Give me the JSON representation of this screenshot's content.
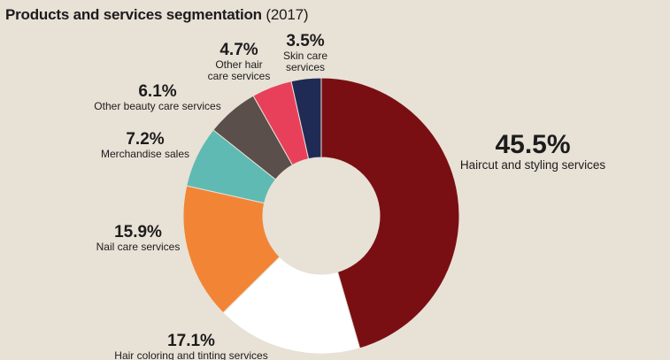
{
  "title": "Products and services segmentation",
  "title_year": "(2017)",
  "chart_data": {
    "type": "pie",
    "donut": true,
    "title": "Products and services segmentation (2017)",
    "slices": [
      {
        "label": "Haircut and styling services",
        "label_lines": [
          "Haircut and styling services"
        ],
        "value": 45.5,
        "value_text": "45.5%",
        "color": "#7a0f13"
      },
      {
        "label": "Hair coloring and tinting services",
        "label_lines": [
          "Hair coloring and tinting services"
        ],
        "value": 17.1,
        "value_text": "17.1%",
        "color": "#ffffff"
      },
      {
        "label": "Nail care services",
        "label_lines": [
          "Nail care services"
        ],
        "value": 15.9,
        "value_text": "15.9%",
        "color": "#f28535"
      },
      {
        "label": "Merchandise sales",
        "label_lines": [
          "Merchandise sales"
        ],
        "value": 7.2,
        "value_text": "7.2%",
        "color": "#5fbab3"
      },
      {
        "label": "Other beauty care services",
        "label_lines": [
          "Other beauty care services"
        ],
        "value": 6.1,
        "value_text": "6.1%",
        "color": "#5a4f4a"
      },
      {
        "label": "Other hair care services",
        "label_lines": [
          "Other hair",
          "care services"
        ],
        "value": 4.7,
        "value_text": "4.7%",
        "color": "#e8405b"
      },
      {
        "label": "Skin care services",
        "label_lines": [
          "Skin care",
          "services"
        ],
        "value": 3.5,
        "value_text": "3.5%",
        "color": "#1f2b55"
      }
    ]
  }
}
